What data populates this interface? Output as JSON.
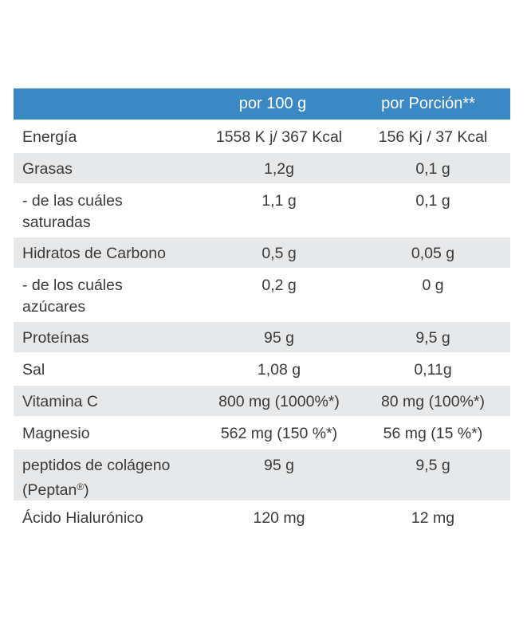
{
  "header": {
    "col1": "",
    "col2": "por 100 g",
    "col3": "por Porción**"
  },
  "rows": [
    {
      "label": [
        "Energía"
      ],
      "per100": "1558 K j/ 367 Kcal",
      "perServing": "156 Kj / 37 Kcal"
    },
    {
      "label": [
        "Grasas"
      ],
      "per100": "1,2g",
      "perServing": "0,1 g"
    },
    {
      "label": [
        "- de las cuáles",
        "saturadas"
      ],
      "per100": "1,1 g",
      "perServing": "0,1 g"
    },
    {
      "label": [
        "Hidratos de Carbono"
      ],
      "per100": "0,5 g",
      "perServing": "0,05 g"
    },
    {
      "label": [
        "- de los cuáles",
        "azúcares"
      ],
      "per100": "0,2 g",
      "perServing": "0 g"
    },
    {
      "label": [
        "Proteínas"
      ],
      "per100": "95 g",
      "perServing": "9,5 g"
    },
    {
      "label": [
        "Sal"
      ],
      "per100": "1,08 g",
      "perServing": "0,11g"
    },
    {
      "label": [
        "Vitamina C"
      ],
      "per100": "800 mg (1000%*)",
      "perServing": "80 mg (100%*)"
    },
    {
      "label": [
        "Magnesio"
      ],
      "per100": "562 mg (150 %*)",
      "perServing": "56 mg (15 %*)"
    },
    {
      "label": [
        "peptidos de colágeno",
        "(Peptan"
      ],
      "labelSup": "®",
      "labelSuffix": ")",
      "per100": "95 g",
      "perServing": "9,5 g"
    },
    {
      "label": [
        "Ácido Hialurónico"
      ],
      "per100": "120 mg",
      "perServing": "12 mg"
    }
  ]
}
